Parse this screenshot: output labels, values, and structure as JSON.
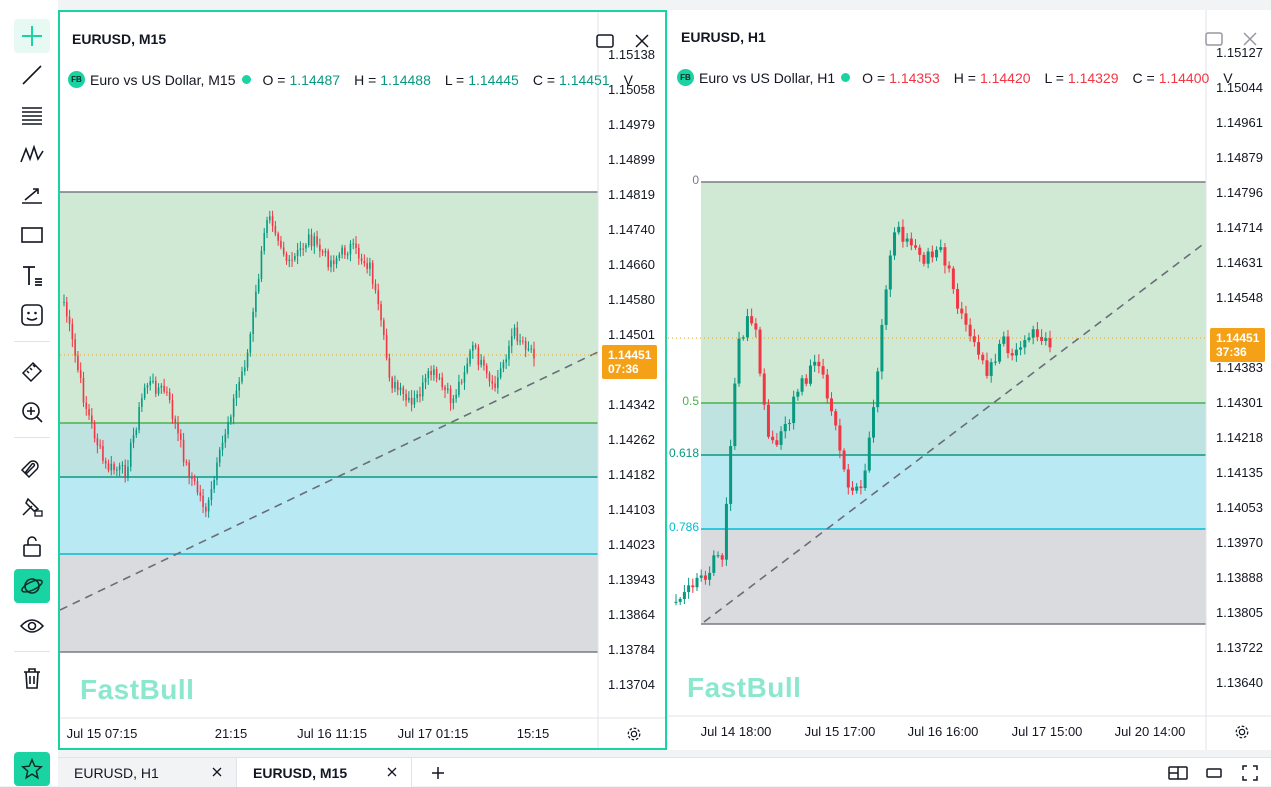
{
  "toolbar": {
    "tools": [
      "crosshair-icon",
      "trend-line-icon",
      "fib-retracement-icon",
      "pattern-icon",
      "projection-icon",
      "rectangle-icon",
      "text-icon",
      "emoji-icon",
      "ruler-icon",
      "zoom-in-icon",
      "magnet-icon",
      "lock-drawings-icon",
      "unlock-icon",
      "sync-drawings-icon",
      "eye-icon",
      "trash-icon"
    ],
    "active_tool": "sync-drawings-icon",
    "favorite": "star-icon"
  },
  "colors": {
    "accent": "#19d3a2",
    "up": "#089981",
    "down": "#f23645",
    "fib_fill_top": "#cfe9d4",
    "fib_fill_mid": "#bfe3e0",
    "fib_fill_low": "#b9e9f2",
    "fib_fill_bottom": "#dadbdf",
    "price_tag": "#f4a117"
  },
  "panels": {
    "left": {
      "title": "EURUSD, M15",
      "legend": {
        "name": "Euro vs US Dollar, M15",
        "o_label": "O =",
        "o": "1.14487",
        "h_label": "H =",
        "h": "1.14488",
        "l_label": "L =",
        "l": "1.14445",
        "c_label": "C =",
        "c": "1.14451",
        "v_label": "V"
      },
      "y_labels": [
        "1.15138",
        "1.15058",
        "1.14979",
        "1.14899",
        "1.14819",
        "1.14740",
        "1.14660",
        "1.14580",
        "1.14501",
        "1.14342",
        "1.14262",
        "1.14182",
        "1.14103",
        "1.14023",
        "1.13943",
        "1.13864",
        "1.13784",
        "1.13704"
      ],
      "x_labels": [
        "Jul 15 07:15",
        "21:15",
        "Jul 16 11:15",
        "Jul 17 01:15",
        "15:15"
      ],
      "price_tag": {
        "price": "1.14451",
        "countdown": "07:36"
      },
      "watermark": "FastBull"
    },
    "right": {
      "title": "EURUSD, H1",
      "legend": {
        "name": "Euro vs US Dollar, H1",
        "o_label": "O =",
        "o": "1.14353",
        "h_label": "H =",
        "h": "1.14420",
        "l_label": "L =",
        "l": "1.14329",
        "c_label": "C =",
        "c": "1.14400",
        "v_label": "V"
      },
      "y_labels": [
        "1.15127",
        "1.15044",
        "1.14961",
        "1.14879",
        "1.14796",
        "1.14714",
        "1.14631",
        "1.14548",
        "1.14383",
        "1.14301",
        "1.14218",
        "1.14135",
        "1.14053",
        "1.13970",
        "1.13888",
        "1.13805",
        "1.13722",
        "1.13640"
      ],
      "x_labels": [
        "Jul 14 18:00",
        "Jul 15 17:00",
        "Jul 16 16:00",
        "Jul 17 15:00",
        "Jul 20 14:00"
      ],
      "price_tag": {
        "price": "1.14451",
        "countdown": "37:36"
      },
      "fib_labels": [
        "0",
        "0.5",
        "0.618",
        "0.786"
      ],
      "watermark": "FastBull"
    }
  },
  "tabs": [
    {
      "label": "EURUSD, H1",
      "active": false
    },
    {
      "label": "EURUSD, M15",
      "active": true
    }
  ],
  "layout_controls": [
    "layout-icon",
    "single-window-icon",
    "fullscreen-icon"
  ]
}
